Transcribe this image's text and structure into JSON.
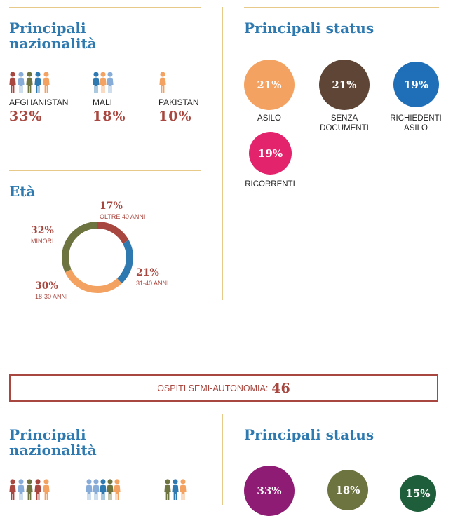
{
  "colors": {
    "blue": "#2e7ab0",
    "red": "#a8473f",
    "orange": "#f4a261",
    "brown": "#5e4535",
    "green": "#6d7440",
    "pink": "#e3246c",
    "purple": "#8e1c74",
    "darkgreen": "#1e5e3a"
  },
  "section1": {
    "nationalities": {
      "title": "Principali nazionalità",
      "items": [
        {
          "label": "AFGHANISTAN",
          "value": "33%"
        },
        {
          "label": "MALI",
          "value": "18%"
        },
        {
          "label": "PAKISTAN",
          "value": "10%"
        }
      ]
    },
    "status": {
      "title": "Principali status",
      "items": [
        {
          "label": "ASILO",
          "value": "21%",
          "color": "#f4a261"
        },
        {
          "label": "SENZA DOCUMENTI",
          "value": "21%",
          "color": "#5e4535"
        },
        {
          "label": "RICHIEDENTI ASILO",
          "value": "19%",
          "color": "#1f6fb8"
        },
        {
          "label": "RICORRENTI",
          "value": "19%",
          "color": "#e3246c"
        }
      ]
    },
    "age": {
      "title": "Età",
      "segments": [
        {
          "label": "OLTRE 40 ANNI",
          "value": "17%",
          "pct": 17,
          "color": "#a8473f"
        },
        {
          "label": "31-40 ANNI",
          "value": "21%",
          "pct": 21,
          "color": "#2e7ab0"
        },
        {
          "label": "18-30 ANNI",
          "value": "30%",
          "pct": 30,
          "color": "#f4a261"
        },
        {
          "label": "MINORI",
          "value": "32%",
          "pct": 32,
          "color": "#6d7440"
        }
      ]
    }
  },
  "banner": {
    "label": "OSPITI SEMI-AUTONOMIA:",
    "value": "46"
  },
  "section2": {
    "nationalities": {
      "title": "Principali nazionalità"
    },
    "status": {
      "title": "Principali status",
      "items": [
        {
          "value": "33%",
          "color": "#8e1c74"
        },
        {
          "value": "18%",
          "color": "#6d7440"
        },
        {
          "value": "15%",
          "color": "#1e5e3a"
        }
      ]
    }
  }
}
